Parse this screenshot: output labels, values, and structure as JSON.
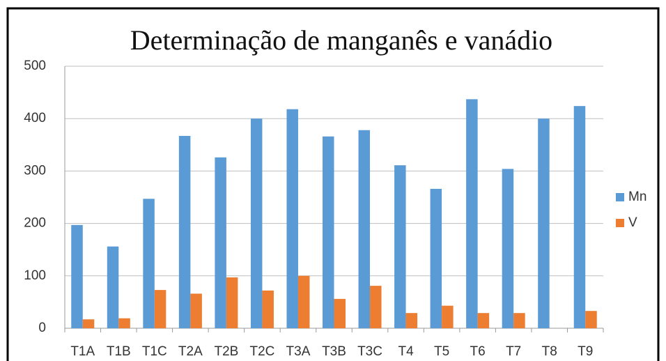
{
  "chart_data": {
    "type": "bar",
    "title": "Determinação  de manganês  e vanádio",
    "categories": [
      "T1A",
      "T1B",
      "T1C",
      "T2A",
      "T2B",
      "T2C",
      "T3A",
      "T3B",
      "T3C",
      "T4",
      "T5",
      "T6",
      "T7",
      "T8",
      "T9"
    ],
    "series": [
      {
        "name": "Mn",
        "color": "#5b9bd5",
        "values": [
          197,
          156,
          247,
          367,
          326,
          400,
          418,
          366,
          378,
          311,
          266,
          437,
          304,
          400,
          424
        ]
      },
      {
        "name": "V",
        "color": "#ed7d31",
        "values": [
          17,
          19,
          73,
          66,
          97,
          72,
          100,
          56,
          81,
          29,
          43,
          29,
          29,
          null,
          33
        ]
      }
    ],
    "ylim": [
      0,
      500
    ],
    "yticks": [
      0,
      100,
      200,
      300,
      400,
      500
    ],
    "grid": true,
    "legend": "right"
  }
}
